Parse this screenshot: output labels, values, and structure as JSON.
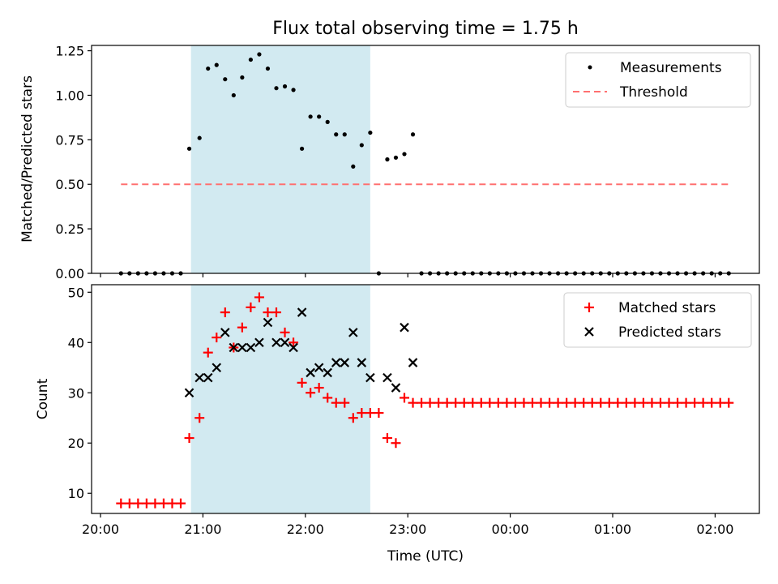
{
  "chart_data": [
    {
      "type": "scatter",
      "title": "Flux total observing time = 1.75 h",
      "ylabel": "Matched/Predicted stars",
      "xlabel": "",
      "ylim": [
        0,
        1.28
      ],
      "yticks": [
        "0.00",
        "0.25",
        "0.50",
        "0.75",
        "1.00",
        "1.25"
      ],
      "ytick_values": [
        0,
        0.25,
        0.5,
        0.75,
        1.0,
        1.25
      ],
      "legend_position": "top-right",
      "shaded_interval": [
        "20:53",
        "22:38"
      ],
      "shade_color": "#add8e6",
      "series": [
        {
          "name": "Measurements",
          "marker": "dot",
          "color": "#000000",
          "x": [
            "20:12",
            "20:17",
            "20:22",
            "20:27",
            "20:32",
            "20:37",
            "20:42",
            "20:47",
            "20:52",
            "20:58",
            "21:03",
            "21:08",
            "21:13",
            "21:18",
            "21:23",
            "21:28",
            "21:33",
            "21:38",
            "21:43",
            "21:48",
            "21:53",
            "21:58",
            "22:03",
            "22:08",
            "22:13",
            "22:18",
            "22:23",
            "22:28",
            "22:33",
            "22:38",
            "22:43",
            "22:48",
            "22:53",
            "22:58",
            "23:03",
            "23:08",
            "23:13",
            "23:18",
            "23:23",
            "23:28",
            "23:33",
            "23:38",
            "23:43",
            "23:48",
            "23:53",
            "23:58",
            "00:03",
            "00:08",
            "00:13",
            "00:18",
            "00:23",
            "00:28",
            "00:33",
            "00:38",
            "00:43",
            "00:48",
            "00:53",
            "00:58",
            "01:03",
            "01:08",
            "01:13",
            "01:18",
            "01:23",
            "01:28",
            "01:33",
            "01:38",
            "01:43",
            "01:48",
            "01:53",
            "01:58",
            "02:03",
            "02:08"
          ],
          "y": [
            0,
            0,
            0,
            0,
            0,
            0,
            0,
            0,
            0.7,
            0.76,
            1.15,
            1.17,
            1.09,
            1.0,
            1.1,
            1.2,
            1.23,
            1.15,
            1.04,
            1.05,
            1.03,
            0.7,
            0.88,
            0.88,
            0.85,
            0.78,
            0.78,
            0.6,
            0.72,
            0.79,
            0,
            0.64,
            0.65,
            0.67,
            0.78,
            0,
            0,
            0,
            0,
            0,
            0,
            0,
            0,
            0,
            0,
            0,
            0,
            0,
            0,
            0,
            0,
            0,
            0,
            0,
            0,
            0,
            0,
            0,
            0,
            0,
            0,
            0,
            0,
            0,
            0,
            0,
            0,
            0,
            0,
            0,
            0,
            0
          ]
        },
        {
          "name": "Threshold",
          "marker": "dashed-line",
          "color": "#ff7070",
          "x": [
            "20:12",
            "02:08"
          ],
          "y": [
            0.5,
            0.5
          ]
        }
      ]
    },
    {
      "type": "scatter",
      "title": "",
      "ylabel": "Count",
      "xlabel": "Time (UTC)",
      "ylim": [
        6,
        51.5
      ],
      "yticks": [
        "10",
        "20",
        "30",
        "40",
        "50"
      ],
      "ytick_values": [
        10,
        20,
        30,
        40,
        50
      ],
      "xticks": [
        "20:00",
        "21:00",
        "22:00",
        "23:00",
        "00:00",
        "01:00",
        "02:00"
      ],
      "legend_position": "top-right",
      "shaded_interval": [
        "20:53",
        "22:38"
      ],
      "shade_color": "#add8e6",
      "series": [
        {
          "name": "Matched stars",
          "marker": "plus",
          "color": "#ff0000",
          "x": [
            "20:12",
            "20:17",
            "20:22",
            "20:27",
            "20:32",
            "20:37",
            "20:42",
            "20:47",
            "20:52",
            "20:58",
            "21:03",
            "21:08",
            "21:13",
            "21:18",
            "21:23",
            "21:28",
            "21:33",
            "21:38",
            "21:43",
            "21:48",
            "21:53",
            "21:58",
            "22:03",
            "22:08",
            "22:13",
            "22:18",
            "22:23",
            "22:28",
            "22:33",
            "22:38",
            "22:43",
            "22:48",
            "22:53",
            "22:58",
            "23:03",
            "23:08",
            "23:13",
            "23:18",
            "23:23",
            "23:28",
            "23:33",
            "23:38",
            "23:43",
            "23:48",
            "23:53",
            "23:58",
            "00:03",
            "00:08",
            "00:13",
            "00:18",
            "00:23",
            "00:28",
            "00:33",
            "00:38",
            "00:43",
            "00:48",
            "00:53",
            "00:58",
            "01:03",
            "01:08",
            "01:13",
            "01:18",
            "01:23",
            "01:28",
            "01:33",
            "01:38",
            "01:43",
            "01:48",
            "01:53",
            "01:58",
            "02:03",
            "02:08"
          ],
          "y": [
            8,
            8,
            8,
            8,
            8,
            8,
            8,
            8,
            21,
            25,
            38,
            41,
            46,
            39,
            43,
            47,
            49,
            46,
            46,
            42,
            40,
            32,
            30,
            31,
            29,
            28,
            28,
            25,
            26,
            26,
            26,
            21,
            20,
            29,
            28,
            28,
            28,
            28,
            28,
            28,
            28,
            28,
            28,
            28,
            28,
            28,
            28,
            28,
            28,
            28,
            28,
            28,
            28,
            28,
            28,
            28,
            28,
            28,
            28,
            28,
            28,
            28,
            28,
            28,
            28,
            28,
            28,
            28,
            28,
            28,
            28,
            28
          ]
        },
        {
          "name": "Predicted stars",
          "marker": "x",
          "color": "#000000",
          "x": [
            "20:52",
            "20:58",
            "21:03",
            "21:08",
            "21:13",
            "21:18",
            "21:23",
            "21:28",
            "21:33",
            "21:38",
            "21:43",
            "21:48",
            "21:53",
            "21:58",
            "22:03",
            "22:08",
            "22:13",
            "22:18",
            "22:23",
            "22:28",
            "22:33",
            "22:38",
            "22:48",
            "22:53",
            "22:58",
            "23:03"
          ],
          "y": [
            30,
            33,
            33,
            35,
            42,
            39,
            39,
            39,
            40,
            44,
            40,
            40,
            39,
            46,
            34,
            35,
            34,
            36,
            36,
            42,
            36,
            33,
            33,
            31,
            43,
            36
          ]
        }
      ]
    }
  ]
}
